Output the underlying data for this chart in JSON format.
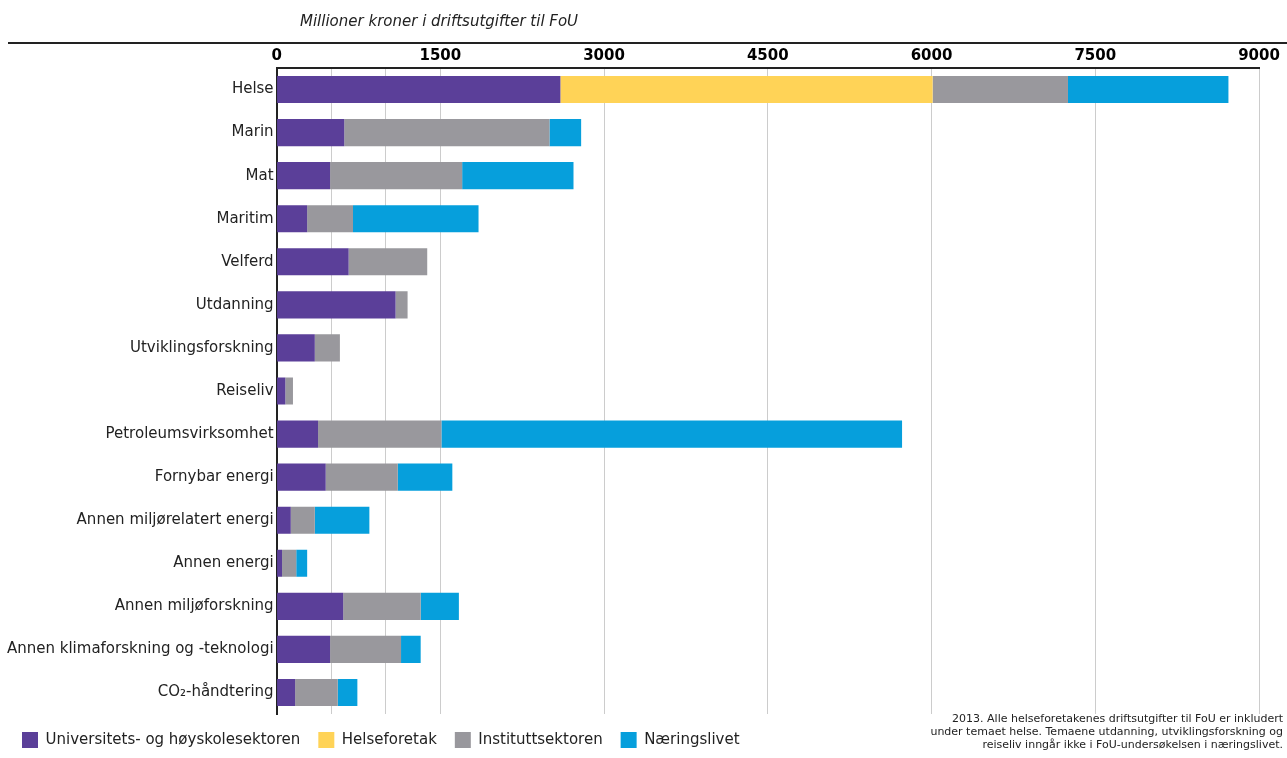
{
  "chart_data": {
    "type": "bar",
    "orientation": "horizontal",
    "stacked": true,
    "xlabel": "Millioner kroner i driftsutgifter til FoU",
    "categories": [
      "Helse",
      "Marin",
      "Mat",
      "Maritim",
      "Velferd",
      "Utdanning",
      "Utviklingsforskning",
      "Reiseliv",
      "Petroleumsvirksomhet",
      "Fornybar energi",
      "Annen miljørelatert energi",
      "Annen energi",
      "Annen miljøforskning",
      "Annen klimaforskning og -teknologi",
      "CO₂-håndtering"
    ],
    "series": [
      {
        "name": "Universitets- og høyskolesektoren",
        "color": "#5b3f99",
        "values": [
          2600,
          620,
          490,
          280,
          660,
          1090,
          350,
          80,
          380,
          450,
          130,
          50,
          610,
          490,
          170
        ]
      },
      {
        "name": "Helseforetak",
        "color": "#ffd357",
        "values": [
          3410,
          null,
          null,
          null,
          null,
          null,
          null,
          null,
          null,
          null,
          null,
          null,
          null,
          null,
          null
        ]
      },
      {
        "name": "Instituttsektoren",
        "color": "#99989d",
        "values": [
          1240,
          1880,
          1210,
          420,
          720,
          110,
          230,
          70,
          1130,
          660,
          220,
          130,
          710,
          650,
          390
        ]
      },
      {
        "name": "Næringslivet",
        "color": "#069fdc",
        "values": [
          1470,
          290,
          1020,
          1150,
          null,
          null,
          null,
          null,
          4220,
          500,
          500,
          100,
          350,
          180,
          180
        ]
      }
    ],
    "xlim": [
      0,
      9000
    ],
    "xticks": [
      0,
      {
        "value": 500,
        "label": null
      },
      {
        "value": 1000,
        "label": null
      },
      1500,
      3000,
      4500,
      6000,
      7500,
      9000
    ],
    "grid": "x",
    "legend": "bottom left",
    "annotations": [
      "2013. Alle helseforetakenes driftsutgifter til FoU er inkludert under temaet helse. Temaene utdanning, utviklingsforskning og reiseliv inngår ikke i FoU-undersøkelsen i næringslivet."
    ]
  }
}
